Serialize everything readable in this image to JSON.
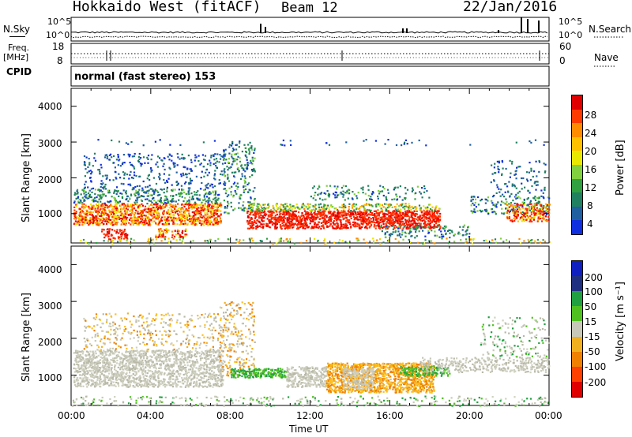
{
  "header": {
    "station": "Hokkaido West (fitACF)",
    "beam": "Beam 12",
    "date": "22/Jan/2016"
  },
  "noise_panel": {
    "left_label": "N.Sky",
    "right_label": "N.Search",
    "left_ticks": [
      "10^5",
      "10^0"
    ],
    "right_ticks": [
      "10^5",
      "10^0"
    ]
  },
  "freq_panel": {
    "left_label_1": "Freq.",
    "left_label_2": "[MHz]",
    "right_label": "Nave",
    "left_ticks": [
      "18",
      "8"
    ],
    "right_ticks": [
      "60",
      "0"
    ]
  },
  "cpid_panel": {
    "label": "CPID",
    "mode_text": "normal (fast stereo) 153"
  },
  "chart_data": [
    {
      "type": "heatmap",
      "name": "power",
      "ylabel": "Slant Range [km]",
      "y_ticks": [
        "4000",
        "3000",
        "2000",
        "1000"
      ],
      "ylim": [
        180,
        4500
      ],
      "colorbar_label": "Power [dB]",
      "colorbar_ticks": [
        "28",
        "24",
        "20",
        "16",
        "12",
        "8",
        "4"
      ],
      "colorbar_colors": [
        "#e00000",
        "#ff3a00",
        "#ff8c00",
        "#ffc000",
        "#e8e800",
        "#80d040",
        "#30a040",
        "#208060",
        "#2060a0",
        "#1030e0"
      ],
      "colorbar_range": [
        0,
        30
      ]
    },
    {
      "type": "heatmap",
      "name": "velocity",
      "ylabel": "Slant Range [km]",
      "y_ticks": [
        "4000",
        "3000",
        "2000",
        "1000"
      ],
      "ylim": [
        180,
        4500
      ],
      "colorbar_label": "Velocity [m s⁻¹]",
      "colorbar_ticks": [
        "200",
        "100",
        "50",
        "15",
        "-15",
        "-50",
        "-100",
        "-200"
      ],
      "colorbar_colors": [
        "#1020c0",
        "#203080",
        "#20a040",
        "#50c020",
        "#c8c8b8",
        "#f0b020",
        "#f08000",
        "#ff4000",
        "#e00000"
      ],
      "colorbar_range": [
        -250,
        250
      ]
    }
  ],
  "x_axis": {
    "label": "Time UT",
    "ticks": [
      "00:00",
      "04:00",
      "08:00",
      "12:00",
      "16:00",
      "20:00",
      "00:00"
    ]
  }
}
